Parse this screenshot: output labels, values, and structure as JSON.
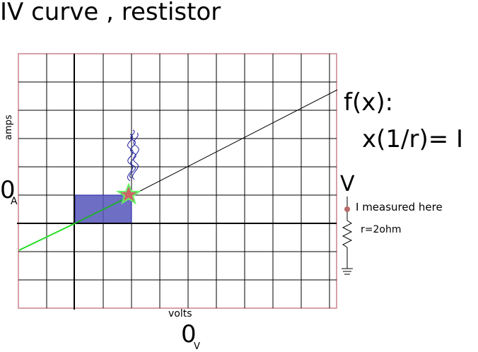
{
  "title": "IV curve , restistor",
  "formula": {
    "line1": "f(x):",
    "line2": "x(1/r)= I"
  },
  "circuit": {
    "v_label": "V",
    "measure_label": "I measured here",
    "resistor_label": "r=2ohm"
  },
  "axes": {
    "y_label": "amps",
    "y_origin_value": "0",
    "y_origin_unit": "A",
    "x_label": "volts",
    "x_origin_value": "0",
    "x_origin_unit": "V"
  },
  "colors": {
    "grid": "#000000",
    "grid_border": "#d8a0a8",
    "line": "#000000",
    "negative_segment": "#22dd22",
    "power_rect": "#5555bb",
    "marker": "#cc6666",
    "marker_glow": "#66ee66",
    "squiggle": "#1a1aa0",
    "measure_dot": "#b86a6a"
  }
}
